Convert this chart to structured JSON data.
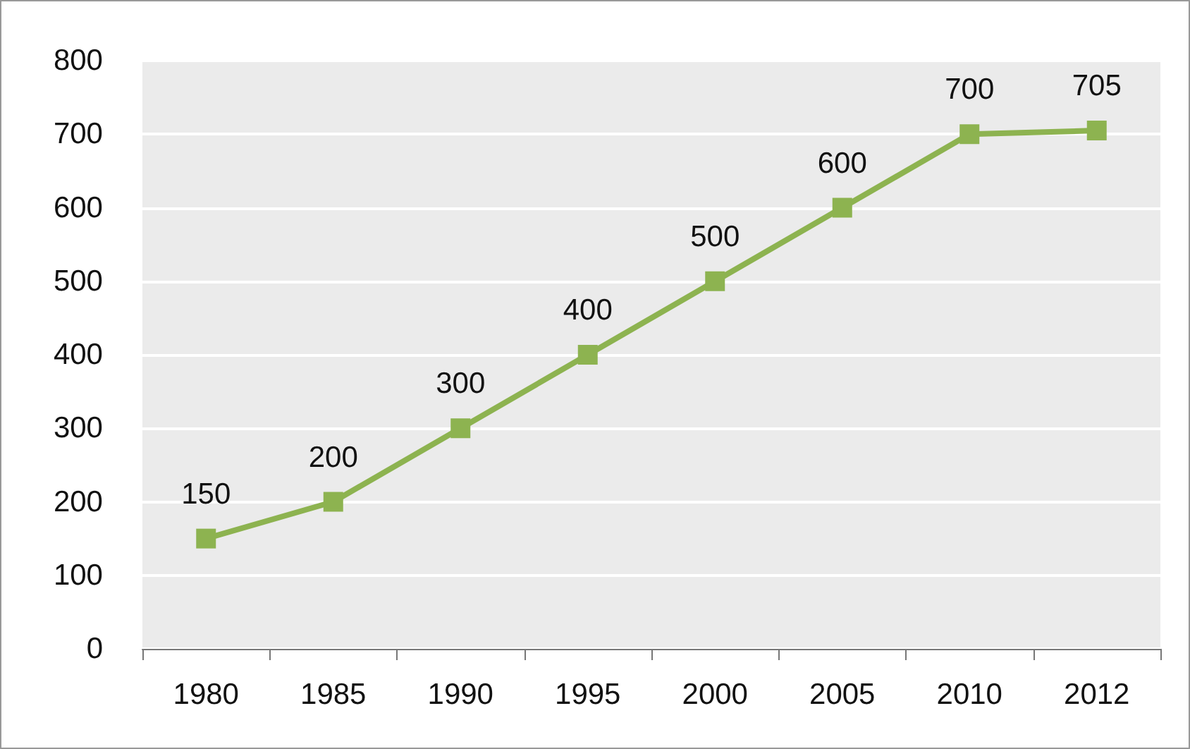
{
  "chart_data": {
    "type": "line",
    "categories": [
      "1980",
      "1985",
      "1990",
      "1995",
      "2000",
      "2005",
      "2010",
      "2012"
    ],
    "series": [
      {
        "color": "#8db350",
        "values": [
          150,
          200,
          300,
          400,
          500,
          600,
          700,
          705
        ]
      }
    ],
    "ylim": [
      0,
      800
    ],
    "yticks": [
      0,
      100,
      200,
      300,
      400,
      500,
      600,
      700,
      800
    ],
    "grid": "y",
    "marker": "square",
    "line_style": "solid",
    "data_labels": true
  }
}
